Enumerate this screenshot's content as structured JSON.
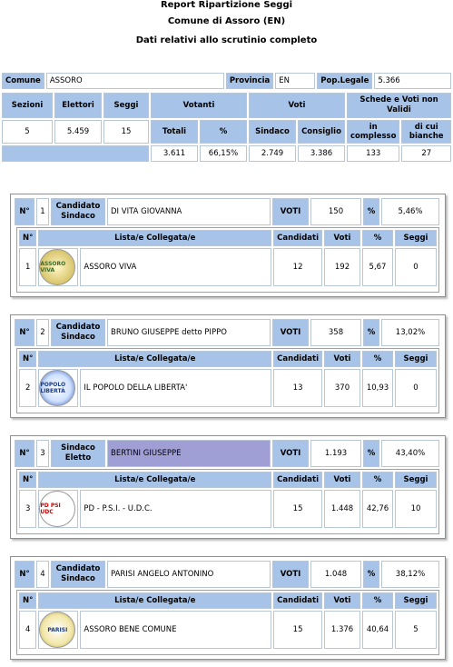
{
  "report": {
    "title": "Report Ripartizione Seggi",
    "comune_title": "Comune di Assoro (EN)",
    "subtitle": "Dati relativi allo scrutinio completo"
  },
  "info": {
    "comune_label": "Comune",
    "comune_value": "ASSORO",
    "provincia_label": "Provincia",
    "provincia_value": "EN",
    "pop_label": "Pop.Legale",
    "pop_value": "5.366"
  },
  "summary": {
    "headers": {
      "sezioni": "Sezioni",
      "elettori": "Elettori",
      "seggi": "Seggi",
      "votanti": "Votanti",
      "voti": "Voti",
      "schede": "Schede e Voti non Validi",
      "totali": "Totali",
      "perc": "%",
      "sindaco": "Sindaco",
      "consiglio": "Consiglio",
      "in_complesso": "in complesso",
      "di_cui_bianche": "di cui bianche"
    },
    "sezioni": "5",
    "elettori": "5.459",
    "seggi": "15",
    "votanti_totali": "3.611",
    "votanti_perc": "66,15%",
    "voti_sindaco": "2.749",
    "voti_consiglio": "3.386",
    "in_complesso": "133",
    "di_cui_bianche": "27"
  },
  "list_headers": {
    "n": "N°",
    "liste": "Lista/e Collegata/e",
    "candidati": "Candidati",
    "voti": "Voti",
    "perc": "%",
    "seggi": "Seggi",
    "voti_label": "VOTI"
  },
  "candidates": [
    {
      "n_label": "N°",
      "n": "1",
      "role": "Candidato Sindaco",
      "name": "DI VITA GIOVANNA",
      "voti": "150",
      "perc": "5,46%",
      "list": {
        "n": "1",
        "name": "ASSORO VIVA",
        "logo": "ASSORO VIVA",
        "candidati": "12",
        "voti": "192",
        "perc": "5,67",
        "seggi": "0"
      }
    },
    {
      "n_label": "N°",
      "n": "2",
      "role": "Candidato Sindaco",
      "name": "BRUNO GIUSEPPE detto PIPPO",
      "voti": "358",
      "perc": "13,02%",
      "list": {
        "n": "2",
        "name": "IL POPOLO DELLA LIBERTA'",
        "logo": "POPOLO LIBERTÀ",
        "candidati": "13",
        "voti": "370",
        "perc": "10,93",
        "seggi": "0"
      }
    },
    {
      "n_label": "N°",
      "n": "3",
      "role": "Sindaco Eletto",
      "name": "BERTINI GIUSEPPE",
      "voti": "1.193",
      "perc": "43,40%",
      "list": {
        "n": "3",
        "name": "PD - P.S.I. - U.D.C.",
        "logo": "PD PSI UDC",
        "candidati": "15",
        "voti": "1.448",
        "perc": "42,76",
        "seggi": "10"
      }
    },
    {
      "n_label": "N°",
      "n": "4",
      "role": "Candidato Sindaco",
      "name": "PARISI ANGELO ANTONINO",
      "voti": "1.048",
      "perc": "38,12%",
      "list": {
        "n": "4",
        "name": "ASSORO BENE COMUNE",
        "logo": "PARISI",
        "candidati": "15",
        "voti": "1.376",
        "perc": "40,64",
        "seggi": "5"
      }
    }
  ],
  "colors": {
    "header_blue": "#a7c4e8",
    "elected_purple": "#9f9fd6"
  }
}
